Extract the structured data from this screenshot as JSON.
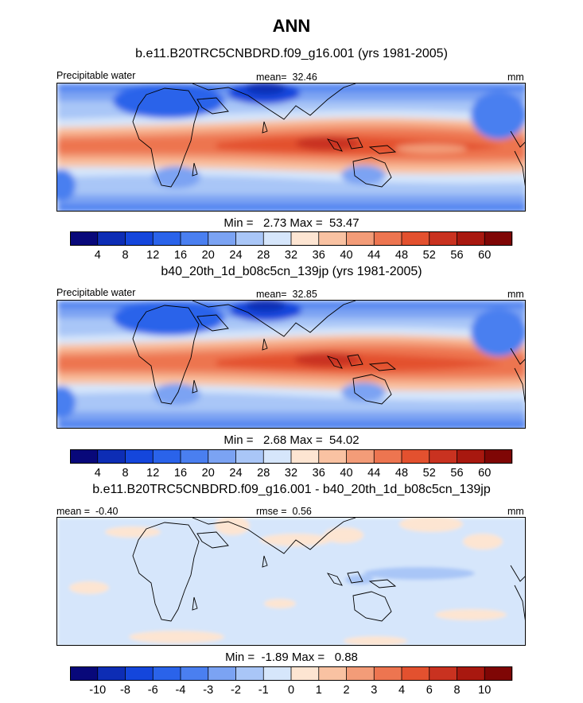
{
  "title": "ANN",
  "chart_data": [
    {
      "type": "heatmap",
      "title": "b.e11.B20TRC5CNBDRD.f09_g16.001 (yrs 1981-2005)",
      "variable_label": "Precipitable water",
      "units": "mm",
      "mean_label": "mean=",
      "mean_value": "32.46",
      "min_label": "Min =",
      "min_value": "2.73",
      "max_label": "Max =",
      "max_value": "53.47",
      "levels": [
        "4",
        "8",
        "12",
        "16",
        "20",
        "24",
        "28",
        "32",
        "36",
        "40",
        "44",
        "48",
        "52",
        "56",
        "60"
      ],
      "colors": [
        "#08087a",
        "#0d2db5",
        "#1446dc",
        "#2a63ea",
        "#4a7ff0",
        "#7ba3f3",
        "#a9c6f7",
        "#d6e6fb",
        "#fde5d2",
        "#f9c2a2",
        "#f39c78",
        "#ed7550",
        "#e3512f",
        "#c93220",
        "#a8180f",
        "#7f0605"
      ],
      "data_range": [
        2.73,
        53.47
      ]
    },
    {
      "type": "heatmap",
      "title": "b40_20th_1d_b08c5cn_139jp (yrs 1981-2005)",
      "variable_label": "Precipitable water",
      "units": "mm",
      "mean_label": "mean=",
      "mean_value": "32.85",
      "min_label": "Min =",
      "min_value": "2.68",
      "max_label": "Max =",
      "max_value": "54.02",
      "levels": [
        "4",
        "8",
        "12",
        "16",
        "20",
        "24",
        "28",
        "32",
        "36",
        "40",
        "44",
        "48",
        "52",
        "56",
        "60"
      ],
      "colors": [
        "#08087a",
        "#0d2db5",
        "#1446dc",
        "#2a63ea",
        "#4a7ff0",
        "#7ba3f3",
        "#a9c6f7",
        "#d6e6fb",
        "#fde5d2",
        "#f9c2a2",
        "#f39c78",
        "#ed7550",
        "#e3512f",
        "#c93220",
        "#a8180f",
        "#7f0605"
      ],
      "data_range": [
        2.68,
        54.02
      ]
    },
    {
      "type": "heatmap",
      "title": "b.e11.B20TRC5CNBDRD.f09_g16.001 - b40_20th_1d_b08c5cn_139jp",
      "units": "mm",
      "mean_label": "mean =",
      "mean_value": "-0.40",
      "rmse_label": "rmse =",
      "rmse_value": "0.56",
      "min_label": "Min =",
      "min_value": "-1.89",
      "max_label": "Max =",
      "max_value": "0.88",
      "levels": [
        "-10",
        "-8",
        "-6",
        "-4",
        "-3",
        "-2",
        "-1",
        "0",
        "1",
        "2",
        "3",
        "4",
        "6",
        "8",
        "10"
      ],
      "colors": [
        "#08087a",
        "#0d2db5",
        "#1446dc",
        "#2a63ea",
        "#4a7ff0",
        "#7ba3f3",
        "#a9c6f7",
        "#d6e6fb",
        "#fde5d2",
        "#f9c2a2",
        "#f39c78",
        "#ed7550",
        "#e3512f",
        "#c93220",
        "#a8180f",
        "#7f0605"
      ],
      "data_range": [
        -1.89,
        0.88
      ]
    }
  ]
}
